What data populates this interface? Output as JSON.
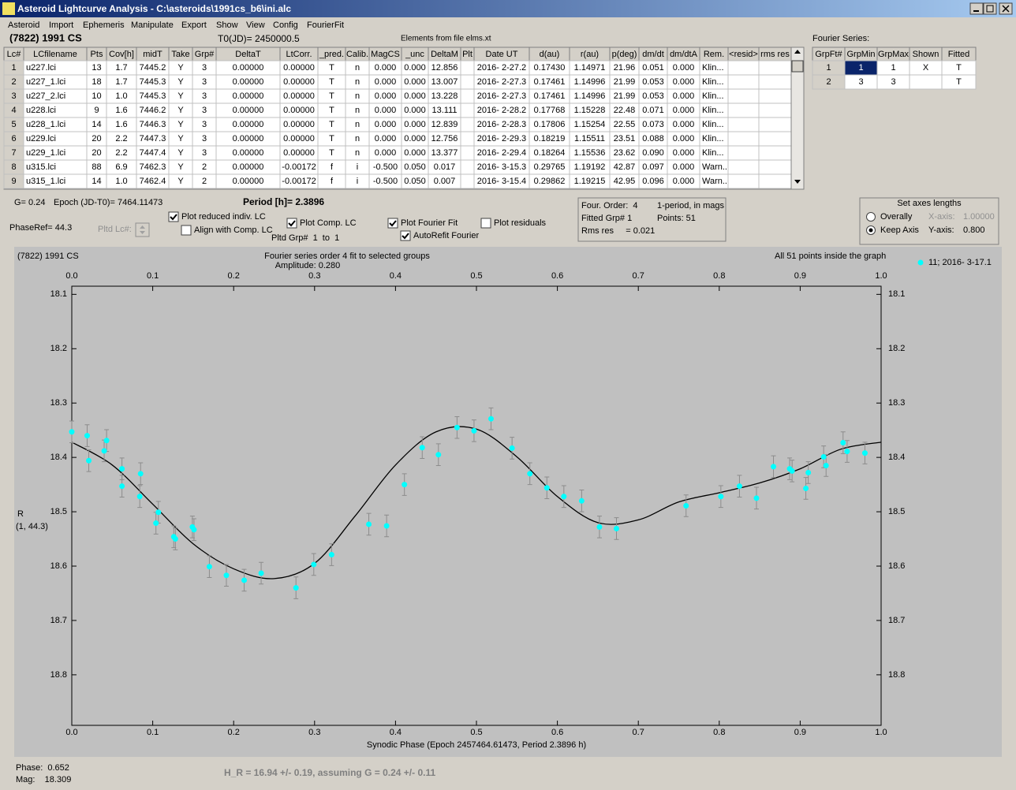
{
  "window": {
    "title": "Asteroid Lightcurve Analysis - C:\\asteroids\\1991cs_b6\\ini.alc"
  },
  "menu": [
    "Asteroid",
    "Import",
    "Ephemeris",
    "Manipulate",
    "Export",
    "Show",
    "View",
    "Config",
    "FourierFit"
  ],
  "header": {
    "object": "(7822) 1991 CS",
    "t0": "T0(JD)= 2450000.5",
    "elements": "Elements from file elms.xt",
    "fourier_label": "Fourier Series:"
  },
  "table": {
    "columns": [
      "Lc#",
      "LCfilename",
      "Pts",
      "Cov[h]",
      "midT",
      "Take",
      "Grp#",
      "DeltaT",
      "LtCorr.",
      "_pred.",
      "Calib.",
      "MagCS",
      "_unc",
      "DeltaM",
      "Plt",
      "Date UT",
      "d(au)",
      "r(au)",
      "p(deg)",
      "dm/dt",
      "dm/dtA",
      "Rem.",
      "<resid>",
      "rms res"
    ],
    "rows": [
      [
        "1",
        "u227.lci",
        "13",
        "1.7",
        "7445.2",
        "Y",
        "3",
        "0.00000",
        "0.00000",
        "T",
        "n",
        "0.000",
        "0.000",
        "12.856",
        null,
        "2016- 2-27.2",
        "0.17430",
        "1.14971",
        "21.96",
        "0.051",
        "0.000",
        "Klin...",
        null,
        null
      ],
      [
        "2",
        "u227_1.lci",
        "18",
        "1.7",
        "7445.3",
        "Y",
        "3",
        "0.00000",
        "0.00000",
        "T",
        "n",
        "0.000",
        "0.000",
        "13.007",
        null,
        "2016- 2-27.3",
        "0.17461",
        "1.14996",
        "21.99",
        "0.053",
        "0.000",
        "Klin...",
        null,
        null
      ],
      [
        "3",
        "u227_2.lci",
        "10",
        "1.0",
        "7445.3",
        "Y",
        "3",
        "0.00000",
        "0.00000",
        "T",
        "n",
        "0.000",
        "0.000",
        "13.228",
        null,
        "2016- 2-27.3",
        "0.17461",
        "1.14996",
        "21.99",
        "0.053",
        "0.000",
        "Klin...",
        null,
        null
      ],
      [
        "4",
        "u228.lci",
        "9",
        "1.6",
        "7446.2",
        "Y",
        "3",
        "0.00000",
        "0.00000",
        "T",
        "n",
        "0.000",
        "0.000",
        "13.111",
        null,
        "2016- 2-28.2",
        "0.17768",
        "1.15228",
        "22.48",
        "0.071",
        "0.000",
        "Klin...",
        null,
        null
      ],
      [
        "5",
        "u228_1.lci",
        "14",
        "1.6",
        "7446.3",
        "Y",
        "3",
        "0.00000",
        "0.00000",
        "T",
        "n",
        "0.000",
        "0.000",
        "12.839",
        null,
        "2016- 2-28.3",
        "0.17806",
        "1.15254",
        "22.55",
        "0.073",
        "0.000",
        "Klin...",
        null,
        null
      ],
      [
        "6",
        "u229.lci",
        "20",
        "2.2",
        "7447.3",
        "Y",
        "3",
        "0.00000",
        "0.00000",
        "T",
        "n",
        "0.000",
        "0.000",
        "12.756",
        null,
        "2016- 2-29.3",
        "0.18219",
        "1.15511",
        "23.51",
        "0.088",
        "0.000",
        "Klin...",
        null,
        null
      ],
      [
        "7",
        "u229_1.lci",
        "20",
        "2.2",
        "7447.4",
        "Y",
        "3",
        "0.00000",
        "0.00000",
        "T",
        "n",
        "0.000",
        "0.000",
        "13.377",
        null,
        "2016- 2-29.4",
        "0.18264",
        "1.15536",
        "23.62",
        "0.090",
        "0.000",
        "Klin...",
        null,
        null
      ],
      [
        "8",
        "u315.lci",
        "88",
        "6.9",
        "7462.3",
        "Y",
        "2",
        "0.00000",
        "-0.00172",
        "f",
        "i",
        "-0.500",
        "0.050",
        "0.017",
        null,
        "2016- 3-15.3",
        "0.29765",
        "1.19192",
        "42.87",
        "0.097",
        "0.000",
        "Warn..",
        null,
        null
      ],
      [
        "9",
        "u315_1.lci",
        "14",
        "1.0",
        "7462.4",
        "Y",
        "2",
        "0.00000",
        "-0.00172",
        "f",
        "i",
        "-0.500",
        "0.050",
        "0.007",
        null,
        "2016- 3-15.4",
        "0.29862",
        "1.19215",
        "42.95",
        "0.096",
        "0.000",
        "Warn..",
        null,
        null
      ]
    ]
  },
  "fourier_table": {
    "columns": [
      "GrpFt#",
      "GrpMin",
      "GrpMax",
      "Shown",
      "Fitted"
    ],
    "rows": [
      [
        "1",
        "1",
        "1",
        "X",
        "T"
      ],
      [
        "2",
        "3",
        "3",
        null,
        "T"
      ]
    ]
  },
  "info": {
    "g": "G= 0.24",
    "epoch": "Epoch (JD-T0)= 7464.11473",
    "period": "Period [h]= 2.3896",
    "phaseref": "PhaseRef= 44.3",
    "pltd_lc": "Pltd Lc#:",
    "pltd_grp": "Pltd Grp#  1  to  1"
  },
  "checkboxes": [
    {
      "label": "Plot reduced indiv. LC",
      "checked": true
    },
    {
      "label": "Align with Comp. LC",
      "checked": false
    },
    {
      "label": "Plot Comp. LC",
      "checked": true
    },
    {
      "label": "Plot Fourier Fit",
      "checked": true
    },
    {
      "label": "AutoRefit Fourier",
      "checked": true
    },
    {
      "label": "Plot residuals",
      "checked": false
    }
  ],
  "fit_box": {
    "order": "Four. Order:  4",
    "period_note": "1-period, in mags",
    "fitted": "Fitted Grp# 1",
    "points": "Points: 51",
    "rms": "Rms res     = 0.021"
  },
  "axes_box": {
    "title": "Set axes lengths",
    "options": [
      {
        "label": "Overally",
        "selected": false
      },
      {
        "label": "Keep Axis",
        "selected": true
      }
    ],
    "x_axis_label": "X-axis:",
    "x_axis": "1.00000",
    "y_axis_label": "Y-axis:",
    "y_axis": "0.800"
  },
  "chart_data": {
    "type": "scatter",
    "title": "(7822) 1991 CS",
    "subtitle": "Fourier series order 4 fit to selected groups",
    "annotations": [
      "Amplitude: 0.280",
      "All 51 points inside the graph"
    ],
    "xlabel": "Synodic Phase (Epoch 2457464.61473, Period 2.3896 h)",
    "ylabel": "R",
    "ylabel_note": "(1, 44.3)",
    "xlim": [
      0,
      1
    ],
    "ylim": [
      18.085,
      18.893
    ],
    "y_inverted": true,
    "xticks": [
      {
        "value": 0,
        "label": "0.0"
      },
      0.1,
      0.2,
      0.3,
      0.4,
      0.5,
      0.6,
      0.7,
      0.8,
      0.9,
      {
        "value": 1,
        "label": "1.0"
      }
    ],
    "yticks": [
      18.1,
      18.2,
      18.3,
      18.4,
      18.5,
      18.6,
      18.7,
      18.8
    ],
    "x": [
      0.0,
      0.019,
      0.021,
      0.04,
      0.043,
      0.062,
      0.062,
      0.085,
      0.084,
      0.104,
      0.107,
      0.128,
      0.126,
      0.149,
      0.151,
      0.17,
      0.191,
      0.213,
      0.234,
      0.277,
      0.299,
      0.321,
      0.367,
      0.389,
      0.411,
      0.433,
      0.453,
      0.476,
      0.497,
      0.518,
      0.544,
      0.566,
      0.587,
      0.608,
      0.63,
      0.652,
      0.673,
      0.759,
      0.802,
      0.825,
      0.846,
      0.867,
      0.887,
      0.89,
      0.907,
      0.91,
      0.929,
      0.932,
      0.953,
      0.958,
      0.98
    ],
    "series": [
      {
        "name": "11; 2016- 3-17.1",
        "color": "#00ffff",
        "values": [
          18.353,
          18.36,
          18.406,
          18.388,
          18.369,
          18.421,
          18.453,
          18.43,
          18.472,
          18.521,
          18.501,
          18.55,
          18.546,
          18.528,
          18.533,
          18.601,
          18.617,
          18.626,
          18.613,
          18.64,
          18.597,
          18.579,
          18.523,
          18.526,
          18.45,
          18.382,
          18.395,
          18.345,
          18.351,
          18.329,
          18.383,
          18.43,
          18.456,
          18.472,
          18.48,
          18.528,
          18.531,
          18.489,
          18.472,
          18.453,
          18.475,
          18.417,
          18.421,
          18.425,
          18.457,
          18.428,
          18.399,
          18.415,
          18.373,
          18.389,
          18.392
        ],
        "errors": [
          0.02,
          0.02,
          0.02,
          0.02,
          0.02,
          0.02,
          0.02,
          0.02,
          0.02,
          0.02,
          0.02,
          0.02,
          0.02,
          0.02,
          0.02,
          0.02,
          0.02,
          0.02,
          0.02,
          0.02,
          0.02,
          0.02,
          0.02,
          0.02,
          0.02,
          0.02,
          0.02,
          0.02,
          0.02,
          0.02,
          0.02,
          0.02,
          0.02,
          0.02,
          0.02,
          0.02,
          0.02,
          0.02,
          0.02,
          0.02,
          0.02,
          0.02,
          0.02,
          0.02,
          0.02,
          0.02,
          0.02,
          0.02,
          0.02,
          0.02,
          0.02
        ]
      }
    ],
    "fit": {
      "color": "#000000",
      "x": [
        0,
        0.05,
        0.1,
        0.15,
        0.2,
        0.25,
        0.3,
        0.35,
        0.4,
        0.45,
        0.5,
        0.55,
        0.6,
        0.65,
        0.7,
        0.75,
        0.8,
        0.85,
        0.9,
        0.95,
        1
      ],
      "values": [
        18.372,
        18.414,
        18.486,
        18.559,
        18.605,
        18.623,
        18.595,
        18.508,
        18.414,
        18.353,
        18.348,
        18.399,
        18.472,
        18.52,
        18.515,
        18.482,
        18.465,
        18.447,
        18.421,
        18.385,
        18.372
      ]
    }
  },
  "status": {
    "phase": "Phase:  0.652",
    "mag": "Mag:    18.309",
    "h": "H_R = 16.94 +/- 0.19, assuming G = 0.24 +/- 0.11"
  }
}
